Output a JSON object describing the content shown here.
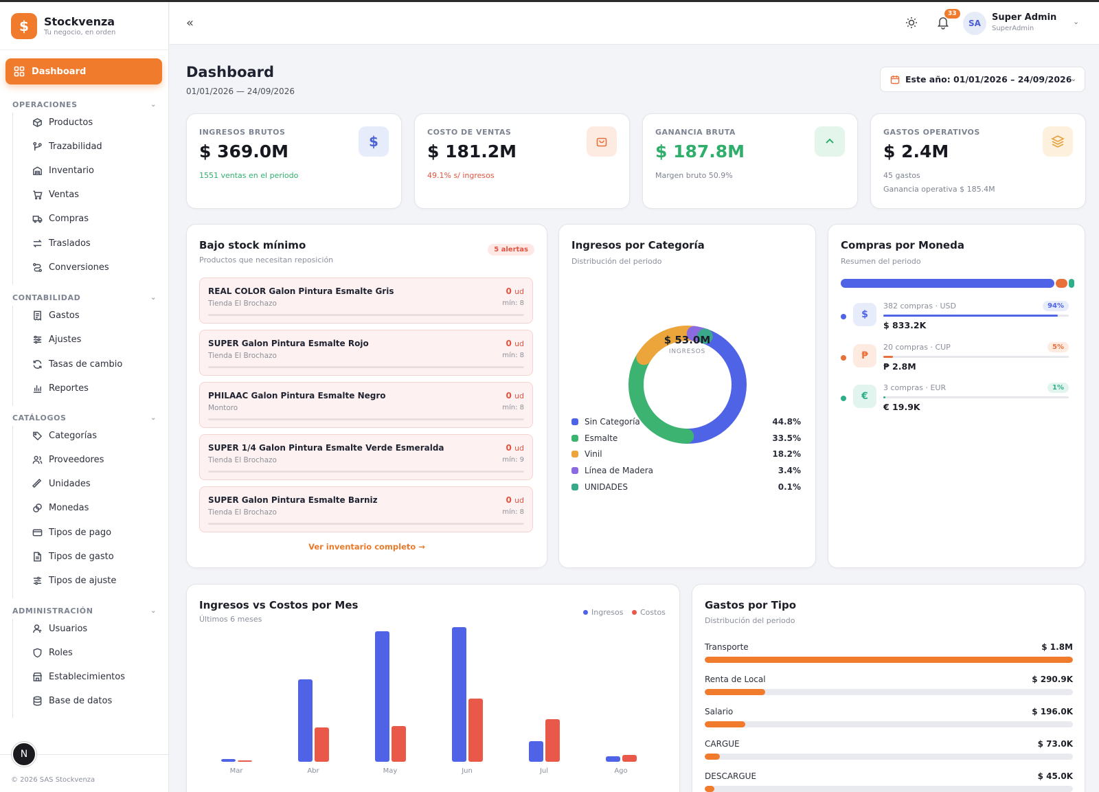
{
  "brand": {
    "name": "Stockvenza",
    "tagline": "Tu negocio, en orden"
  },
  "sidebar": {
    "dashboard": "Dashboard",
    "sections": [
      {
        "title": "OPERACIONES",
        "items": [
          {
            "label": "Productos",
            "icon": "box-icon"
          },
          {
            "label": "Trazabilidad",
            "icon": "branch-icon"
          },
          {
            "label": "Inventario",
            "icon": "warehouse-icon"
          },
          {
            "label": "Ventas",
            "icon": "cart-icon"
          },
          {
            "label": "Compras",
            "icon": "truck-icon"
          },
          {
            "label": "Traslados",
            "icon": "arrows-icon"
          },
          {
            "label": "Conversiones",
            "icon": "route-icon"
          }
        ]
      },
      {
        "title": "CONTABILIDAD",
        "items": [
          {
            "label": "Gastos",
            "icon": "receipt-icon"
          },
          {
            "label": "Ajustes",
            "icon": "sliders-icon"
          },
          {
            "label": "Tasas de cambio",
            "icon": "refresh-icon"
          },
          {
            "label": "Reportes",
            "icon": "chart-icon"
          }
        ]
      },
      {
        "title": "CATÁLOGOS",
        "items": [
          {
            "label": "Categorías",
            "icon": "tag-icon"
          },
          {
            "label": "Proveedores",
            "icon": "users-icon"
          },
          {
            "label": "Unidades",
            "icon": "ruler-icon"
          },
          {
            "label": "Monedas",
            "icon": "coins-icon"
          },
          {
            "label": "Tipos de pago",
            "icon": "card-icon"
          },
          {
            "label": "Tipos de gasto",
            "icon": "file-icon"
          },
          {
            "label": "Tipos de ajuste",
            "icon": "adjust-icon"
          }
        ]
      },
      {
        "title": "ADMINISTRACIÓN",
        "items": [
          {
            "label": "Usuarios",
            "icon": "user-icon"
          },
          {
            "label": "Roles",
            "icon": "shield-icon"
          },
          {
            "label": "Establecimientos",
            "icon": "store-icon"
          },
          {
            "label": "Base de datos",
            "icon": "database-icon"
          }
        ]
      }
    ],
    "avatar_initial": "N",
    "copyright": "© 2026 SAS Stockvenza"
  },
  "header": {
    "collapse": "«",
    "notif_count": "33",
    "user_initials": "SA",
    "user_name": "Super Admin",
    "user_role": "SuperAdmin"
  },
  "page": {
    "title": "Dashboard",
    "dates": "01/01/2026 — 24/09/2026",
    "date_selector": "Este año: 01/01/2026 – 24/09/2026"
  },
  "kpis": [
    {
      "label": "INGRESOS BRUTOS",
      "value": "$ 369.0M",
      "sub": "1551 ventas en el periodo",
      "sub2": "",
      "icon": "dollar-icon",
      "glyph": "$",
      "color": "#16181f",
      "sub_color": "#2fae6b",
      "icon_bg": "#e7ecfb",
      "icon_color": "#4a63d8"
    },
    {
      "label": "COSTO DE VENTAS",
      "value": "$ 181.2M",
      "sub": "49.1% s/ ingresos",
      "sub2": "",
      "icon": "bag-icon",
      "glyph": "▢",
      "color": "#16181f",
      "sub_color": "#e0533f",
      "icon_bg": "#fdebe2",
      "icon_color": "#e8703a"
    },
    {
      "label": "GANANCIA BRUTA",
      "value": "$ 187.8M",
      "sub": "Margen bruto 50.9%",
      "sub2": "",
      "icon": "chevron-up-icon",
      "glyph": "⌃",
      "color": "#2fae6b",
      "sub_color": "#7d8391",
      "icon_bg": "#e4f5ec",
      "icon_color": "#2fae6b"
    },
    {
      "label": "GASTOS OPERATIVOS",
      "value": "$ 2.4M",
      "sub": "45 gastos",
      "sub2": "Ganancia operativa $ 185.4M",
      "icon": "layers-icon",
      "glyph": "≋",
      "color": "#16181f",
      "sub_color": "#7d8391",
      "icon_bg": "#fdf0dd",
      "icon_color": "#e8a03a"
    }
  ],
  "stock": {
    "title": "Bajo stock mínimo",
    "subtitle": "Productos que necesitan reposición",
    "alerts": "5 alertas",
    "items": [
      {
        "name": "REAL COLOR Galon Pintura Esmalte Gris",
        "store": "Tienda El Brochazo",
        "qty": "0",
        "unit": "ud",
        "min": "mín: 8"
      },
      {
        "name": "SUPER Galon Pintura Esmalte Rojo",
        "store": "Tienda El Brochazo",
        "qty": "0",
        "unit": "ud",
        "min": "mín: 8"
      },
      {
        "name": "PHILAAC Galon Pintura Esmalte Negro",
        "store": "Montoro",
        "qty": "0",
        "unit": "ud",
        "min": "mín: 8"
      },
      {
        "name": "SUPER 1/4 Galon Pintura Esmalte Verde Esmeralda",
        "store": "Tienda El Brochazo",
        "qty": "0",
        "unit": "ud",
        "min": "mín: 9"
      },
      {
        "name": "SUPER Galon Pintura Esmalte Barniz",
        "store": "Tienda El Brochazo",
        "qty": "0",
        "unit": "ud",
        "min": "mín: 8"
      }
    ],
    "link": "Ver inventario completo →"
  },
  "categories": {
    "title": "Ingresos por Categoría",
    "subtitle": "Distribución del periodo",
    "center_value": "$ 53.0M",
    "center_label": "INGRESOS",
    "slices": [
      {
        "name": "Sin Categoría",
        "pct": "44.8%",
        "value": 44.8,
        "color": "#4f63e6"
      },
      {
        "name": "Esmalte",
        "pct": "33.5%",
        "value": 33.5,
        "color": "#3cb371"
      },
      {
        "name": "Vinil",
        "pct": "18.2%",
        "value": 18.2,
        "color": "#eba53a"
      },
      {
        "name": "Línea de Madera",
        "pct": "3.4%",
        "value": 3.4,
        "color": "#8b6be0"
      },
      {
        "name": "UNIDADES",
        "pct": "0.1%",
        "value": 0.1,
        "color": "#3aa88a"
      }
    ]
  },
  "currency": {
    "title": "Compras por Moneda",
    "subtitle": "Resumen del periodo",
    "rows": [
      {
        "label": "382 compras · USD",
        "amount": "$ 833.2K",
        "pct": "94%",
        "share": 94,
        "glyph": "$",
        "icon": "dollar-icon",
        "color": "#4f63e6",
        "bg": "#e7ecfb"
      },
      {
        "label": "20 compras · CUP",
        "amount": "₱ 2.8M",
        "pct": "5%",
        "share": 5,
        "glyph": "₱",
        "icon": "peso-icon",
        "color": "#e8703a",
        "bg": "#fdebe2"
      },
      {
        "label": "3 compras · EUR",
        "amount": "€ 19.9K",
        "pct": "1%",
        "share": 1,
        "glyph": "€",
        "icon": "euro-icon",
        "color": "#2fae8a",
        "bg": "#e2f4ee"
      }
    ]
  },
  "monthly": {
    "title": "Ingresos vs Costos por Mes",
    "subtitle": "Últimos 6 meses",
    "legend_income": "Ingresos",
    "legend_cost": "Costos",
    "income_color": "#4f63e6",
    "cost_color": "#e8594a"
  },
  "expenses": {
    "title": "Gastos por Tipo",
    "subtitle": "Distribución del periodo",
    "rows": [
      {
        "name": "Transporte",
        "value": "$ 1.8M",
        "share": 100
      },
      {
        "name": "Renta de Local",
        "value": "$ 290.9K",
        "share": 16.5
      },
      {
        "name": "Salario",
        "value": "$ 196.0K",
        "share": 11.1
      },
      {
        "name": "CARGUE",
        "value": "$ 73.0K",
        "share": 4.1
      },
      {
        "name": "DESCARGUE",
        "value": "$ 45.0K",
        "share": 2.6
      }
    ]
  },
  "chart_data": {
    "type": "bar",
    "title": "Ingresos vs Costos por Mes",
    "categories": [
      "Mar",
      "Abr",
      "May",
      "Jun",
      "Jul",
      "Ago"
    ],
    "series": [
      {
        "name": "Ingresos",
        "values": [
          2,
          60,
          95,
          98,
          15,
          4
        ]
      },
      {
        "name": "Costos",
        "values": [
          1,
          25,
          26,
          46,
          31,
          5
        ]
      }
    ],
    "ylim": [
      0,
      100
    ]
  }
}
